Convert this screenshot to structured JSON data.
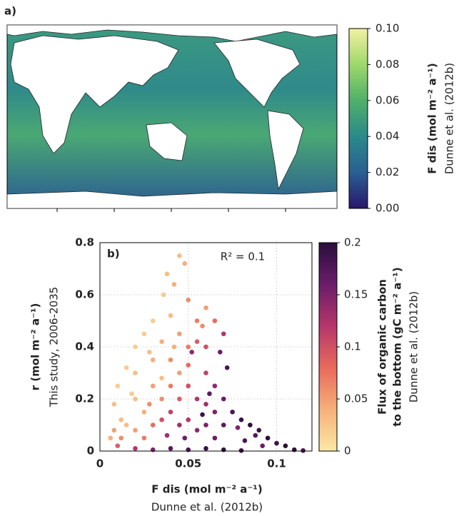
{
  "chart_data": [
    {
      "type": "map",
      "label": "a)",
      "colormap": [
        "#28176b",
        "#2a5f92",
        "#2a8a8a",
        "#4fb06a",
        "#9ed86a",
        "#f3f1a2"
      ],
      "clim": [
        0,
        0.1
      ],
      "cticks": [
        {
          "value": 0,
          "label": "0.00"
        },
        {
          "value": 0.02,
          "label": "0.02"
        },
        {
          "value": 0.04,
          "label": "0.04"
        },
        {
          "value": 0.06,
          "label": "0.06"
        },
        {
          "value": 0.08,
          "label": "0.08"
        },
        {
          "value": 0.1,
          "label": "0.10"
        }
      ],
      "colorbar_label": "F dis (mol m⁻² a⁻¹)",
      "colorbar_sublabel": "Dunne et al. (2012b)"
    },
    {
      "type": "scatter",
      "label": "b)",
      "annotation": "R² = 0.1",
      "x_label": "F dis (mol m⁻² a⁻¹)",
      "x_sublabel": "Dunne et al. (2012b)",
      "y_label": "r (mol m⁻² a⁻¹)",
      "y_sublabel": "This study, 2006-2035",
      "xlim": [
        0,
        0.12
      ],
      "xticks": [
        0,
        0.05,
        0.1
      ],
      "ylim": [
        0,
        0.8
      ],
      "yticks": [
        0,
        0.2,
        0.4,
        0.6,
        0.8
      ],
      "grid": true,
      "colormap": [
        "#fbe8a6",
        "#f6b07a",
        "#e86a5c",
        "#b5366a",
        "#6a1c6a",
        "#2a0f3c"
      ],
      "clim": [
        0,
        0.2
      ],
      "cticks": [
        0,
        0.05,
        0.1,
        0.15,
        0.2
      ],
      "colorbar_label": [
        "Flux of organic carbon",
        "to the bottom (gC m⁻² a⁻¹)"
      ],
      "colorbar_sublabel": "Dunne et al. (2012b)",
      "x": [
        0.045,
        0.048,
        0.038,
        0.042,
        0.036,
        0.05,
        0.06,
        0.055,
        0.04,
        0.03,
        0.065,
        0.07,
        0.068,
        0.072,
        0.025,
        0.02,
        0.035,
        0.045,
        0.055,
        0.06,
        0.015,
        0.01,
        0.008,
        0.012,
        0.02,
        0.03,
        0.04,
        0.05,
        0.06,
        0.065,
        0.07,
        0.075,
        0.08,
        0.085,
        0.09,
        0.095,
        0.1,
        0.105,
        0.11,
        0.115,
        0.088,
        0.078,
        0.082,
        0.092,
        0.02,
        0.025,
        0.03,
        0.035,
        0.04,
        0.045,
        0.05,
        0.055,
        0.06,
        0.065,
        0.07,
        0.015,
        0.02,
        0.025,
        0.03,
        0.035,
        0.04,
        0.045,
        0.05,
        0.055,
        0.06,
        0.065,
        0.01,
        0.02,
        0.03,
        0.04,
        0.05,
        0.06,
        0.07,
        0.08,
        0.006,
        0.008,
        0.05,
        0.045,
        0.035,
        0.028,
        0.058,
        0.052,
        0.062,
        0.058,
        0.048,
        0.038,
        0.028,
        0.018,
        0.012,
        0.042
      ],
      "y": [
        0.75,
        0.72,
        0.68,
        0.64,
        0.6,
        0.58,
        0.55,
        0.5,
        0.52,
        0.5,
        0.5,
        0.45,
        0.38,
        0.32,
        0.45,
        0.4,
        0.42,
        0.45,
        0.42,
        0.4,
        0.32,
        0.25,
        0.18,
        0.12,
        0.3,
        0.35,
        0.35,
        0.33,
        0.3,
        0.25,
        0.2,
        0.15,
        0.12,
        0.1,
        0.08,
        0.05,
        0.03,
        0.02,
        0.005,
        0.002,
        0.06,
        0.09,
        0.04,
        0.02,
        0.2,
        0.15,
        0.25,
        0.2,
        0.25,
        0.2,
        0.25,
        0.2,
        0.18,
        0.15,
        0.1,
        0.1,
        0.08,
        0.05,
        0.1,
        0.12,
        0.15,
        0.1,
        0.12,
        0.08,
        0.1,
        0.05,
        0.02,
        0.01,
        0.005,
        0.01,
        0.005,
        0.01,
        0.005,
        0.002,
        0.05,
        0.08,
        0.4,
        0.3,
        0.28,
        0.38,
        0.48,
        0.38,
        0.22,
        0.14,
        0.05,
        0.06,
        0.18,
        0.22,
        0.05,
        0.4
      ],
      "c": [
        0.03,
        0.04,
        0.03,
        0.04,
        0.02,
        0.06,
        0.05,
        0.07,
        0.03,
        0.02,
        0.08,
        0.12,
        0.16,
        0.18,
        0.02,
        0.02,
        0.04,
        0.05,
        0.09,
        0.1,
        0.02,
        0.02,
        0.03,
        0.03,
        0.03,
        0.04,
        0.06,
        0.08,
        0.11,
        0.14,
        0.16,
        0.18,
        0.19,
        0.2,
        0.19,
        0.2,
        0.19,
        0.2,
        0.2,
        0.18,
        0.17,
        0.15,
        0.18,
        0.16,
        0.03,
        0.04,
        0.05,
        0.06,
        0.07,
        0.09,
        0.1,
        0.12,
        0.13,
        0.15,
        0.17,
        0.03,
        0.05,
        0.07,
        0.08,
        0.1,
        0.11,
        0.13,
        0.12,
        0.14,
        0.15,
        0.16,
        0.09,
        0.12,
        0.15,
        0.17,
        0.18,
        0.19,
        0.2,
        0.19,
        0.04,
        0.05,
        0.07,
        0.05,
        0.03,
        0.03,
        0.06,
        0.14,
        0.17,
        0.19,
        0.16,
        0.13,
        0.06,
        0.02,
        0.06,
        0.04
      ]
    }
  ]
}
